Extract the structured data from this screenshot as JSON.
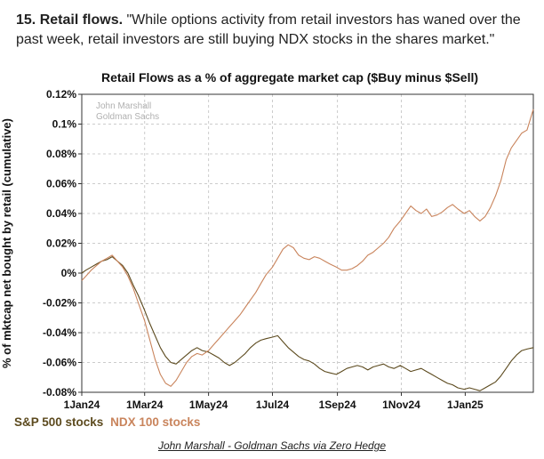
{
  "intro": {
    "lead": "15. Retail flows.",
    "text": " \"While options activity from retail investors has waned over the past week, retail investors are still buying NDX stocks in the shares market.\""
  },
  "caption": "John Marshall - Goldman Sachs via Zero Hedge",
  "colors": {
    "sp500": "#5c4a1e",
    "ndx": "#c9845c",
    "grid": "#cccccc"
  },
  "chart_data": {
    "type": "line",
    "title": "Retail Flows as a % of aggregate market cap ($Buy minus $Sell)",
    "ylabel": "% of mktcap net bought by retail (cumulative)",
    "xlabel": "",
    "watermark": [
      "John Marshall",
      "Goldman Sachs"
    ],
    "ylim": [
      -0.08,
      0.12
    ],
    "xlim": [
      "2024-01-01",
      "2025-03-07"
    ],
    "grid": true,
    "legend_position": "bottom-left",
    "x_ticks": [
      {
        "label": "1Jan24",
        "date": "2024-01-01"
      },
      {
        "label": "1Mar24",
        "date": "2024-03-01"
      },
      {
        "label": "1May24",
        "date": "2024-05-01"
      },
      {
        "label": "1Jul24",
        "date": "2024-07-01"
      },
      {
        "label": "1Sep24",
        "date": "2024-09-01"
      },
      {
        "label": "1Nov24",
        "date": "2024-11-01"
      },
      {
        "label": "1Jan25",
        "date": "2025-01-01"
      }
    ],
    "y_ticks": [
      "0.12%",
      "0.1%",
      "0.08%",
      "0.06%",
      "0.04%",
      "0.02%",
      "0%",
      "-0.02%",
      "-0.04%",
      "-0.06%",
      "-0.08%"
    ],
    "y_tick_values": [
      0.12,
      0.1,
      0.08,
      0.06,
      0.04,
      0.02,
      0,
      -0.02,
      -0.04,
      -0.06,
      -0.08
    ],
    "series": [
      {
        "name": "S&P 500 stocks",
        "points": [
          [
            "2024-01-01",
            0.0
          ],
          [
            "2024-01-05",
            0.002
          ],
          [
            "2024-01-10",
            0.004
          ],
          [
            "2024-01-15",
            0.006
          ],
          [
            "2024-01-20",
            0.008
          ],
          [
            "2024-01-25",
            0.009
          ],
          [
            "2024-01-30",
            0.011
          ],
          [
            "2024-02-04",
            0.008
          ],
          [
            "2024-02-09",
            0.005
          ],
          [
            "2024-02-14",
            0.0
          ],
          [
            "2024-02-19",
            -0.008
          ],
          [
            "2024-02-24",
            -0.015
          ],
          [
            "2024-03-01",
            -0.025
          ],
          [
            "2024-03-06",
            -0.034
          ],
          [
            "2024-03-11",
            -0.042
          ],
          [
            "2024-03-16",
            -0.05
          ],
          [
            "2024-03-21",
            -0.056
          ],
          [
            "2024-03-26",
            -0.06
          ],
          [
            "2024-03-31",
            -0.061
          ],
          [
            "2024-04-05",
            -0.058
          ],
          [
            "2024-04-10",
            -0.055
          ],
          [
            "2024-04-15",
            -0.052
          ],
          [
            "2024-04-20",
            -0.05
          ],
          [
            "2024-04-25",
            -0.052
          ],
          [
            "2024-05-01",
            -0.053
          ],
          [
            "2024-05-06",
            -0.055
          ],
          [
            "2024-05-11",
            -0.057
          ],
          [
            "2024-05-16",
            -0.06
          ],
          [
            "2024-05-21",
            -0.062
          ],
          [
            "2024-05-26",
            -0.06
          ],
          [
            "2024-05-31",
            -0.057
          ],
          [
            "2024-06-05",
            -0.054
          ],
          [
            "2024-06-10",
            -0.05
          ],
          [
            "2024-06-15",
            -0.047
          ],
          [
            "2024-06-20",
            -0.045
          ],
          [
            "2024-06-25",
            -0.044
          ],
          [
            "2024-07-01",
            -0.043
          ],
          [
            "2024-07-06",
            -0.042
          ],
          [
            "2024-07-11",
            -0.046
          ],
          [
            "2024-07-16",
            -0.05
          ],
          [
            "2024-07-21",
            -0.053
          ],
          [
            "2024-07-26",
            -0.056
          ],
          [
            "2024-07-31",
            -0.058
          ],
          [
            "2024-08-05",
            -0.059
          ],
          [
            "2024-08-10",
            -0.061
          ],
          [
            "2024-08-15",
            -0.064
          ],
          [
            "2024-08-20",
            -0.066
          ],
          [
            "2024-08-25",
            -0.067
          ],
          [
            "2024-08-31",
            -0.068
          ],
          [
            "2024-09-05",
            -0.066
          ],
          [
            "2024-09-10",
            -0.064
          ],
          [
            "2024-09-15",
            -0.063
          ],
          [
            "2024-09-20",
            -0.062
          ],
          [
            "2024-09-25",
            -0.063
          ],
          [
            "2024-09-30",
            -0.065
          ],
          [
            "2024-10-05",
            -0.063
          ],
          [
            "2024-10-10",
            -0.062
          ],
          [
            "2024-10-15",
            -0.061
          ],
          [
            "2024-10-20",
            -0.063
          ],
          [
            "2024-10-25",
            -0.064
          ],
          [
            "2024-10-31",
            -0.062
          ],
          [
            "2024-11-05",
            -0.064
          ],
          [
            "2024-11-10",
            -0.066
          ],
          [
            "2024-11-15",
            -0.065
          ],
          [
            "2024-11-20",
            -0.064
          ],
          [
            "2024-11-25",
            -0.066
          ],
          [
            "2024-11-30",
            -0.068
          ],
          [
            "2024-12-05",
            -0.07
          ],
          [
            "2024-12-10",
            -0.072
          ],
          [
            "2024-12-15",
            -0.074
          ],
          [
            "2024-12-20",
            -0.075
          ],
          [
            "2024-12-25",
            -0.077
          ],
          [
            "2024-12-31",
            -0.078
          ],
          [
            "2025-01-05",
            -0.077
          ],
          [
            "2025-01-10",
            -0.078
          ],
          [
            "2025-01-15",
            -0.079
          ],
          [
            "2025-01-20",
            -0.077
          ],
          [
            "2025-01-25",
            -0.075
          ],
          [
            "2025-01-30",
            -0.073
          ],
          [
            "2025-02-04",
            -0.069
          ],
          [
            "2025-02-09",
            -0.064
          ],
          [
            "2025-02-14",
            -0.059
          ],
          [
            "2025-02-19",
            -0.055
          ],
          [
            "2025-02-24",
            -0.052
          ],
          [
            "2025-03-01",
            -0.051
          ],
          [
            "2025-03-07",
            -0.05
          ]
        ]
      },
      {
        "name": "NDX 100 stocks",
        "points": [
          [
            "2024-01-01",
            -0.005
          ],
          [
            "2024-01-05",
            -0.002
          ],
          [
            "2024-01-10",
            0.002
          ],
          [
            "2024-01-15",
            0.005
          ],
          [
            "2024-01-20",
            0.008
          ],
          [
            "2024-01-25",
            0.01
          ],
          [
            "2024-01-30",
            0.012
          ],
          [
            "2024-02-04",
            0.008
          ],
          [
            "2024-02-09",
            0.004
          ],
          [
            "2024-02-14",
            -0.002
          ],
          [
            "2024-02-19",
            -0.01
          ],
          [
            "2024-02-24",
            -0.02
          ],
          [
            "2024-03-01",
            -0.032
          ],
          [
            "2024-03-06",
            -0.045
          ],
          [
            "2024-03-11",
            -0.058
          ],
          [
            "2024-03-16",
            -0.068
          ],
          [
            "2024-03-21",
            -0.074
          ],
          [
            "2024-03-26",
            -0.076
          ],
          [
            "2024-03-31",
            -0.072
          ],
          [
            "2024-04-05",
            -0.066
          ],
          [
            "2024-04-10",
            -0.06
          ],
          [
            "2024-04-15",
            -0.056
          ],
          [
            "2024-04-20",
            -0.054
          ],
          [
            "2024-04-25",
            -0.055
          ],
          [
            "2024-05-01",
            -0.052
          ],
          [
            "2024-05-06",
            -0.048
          ],
          [
            "2024-05-11",
            -0.044
          ],
          [
            "2024-05-16",
            -0.04
          ],
          [
            "2024-05-21",
            -0.036
          ],
          [
            "2024-05-26",
            -0.032
          ],
          [
            "2024-05-31",
            -0.028
          ],
          [
            "2024-06-05",
            -0.023
          ],
          [
            "2024-06-10",
            -0.018
          ],
          [
            "2024-06-15",
            -0.013
          ],
          [
            "2024-06-20",
            -0.007
          ],
          [
            "2024-06-25",
            -0.001
          ],
          [
            "2024-07-01",
            0.004
          ],
          [
            "2024-07-06",
            0.01
          ],
          [
            "2024-07-11",
            0.016
          ],
          [
            "2024-07-16",
            0.019
          ],
          [
            "2024-07-21",
            0.017
          ],
          [
            "2024-07-26",
            0.012
          ],
          [
            "2024-07-31",
            0.01
          ],
          [
            "2024-08-05",
            0.009
          ],
          [
            "2024-08-10",
            0.011
          ],
          [
            "2024-08-15",
            0.01
          ],
          [
            "2024-08-20",
            0.008
          ],
          [
            "2024-08-25",
            0.006
          ],
          [
            "2024-08-31",
            0.004
          ],
          [
            "2024-09-05",
            0.002
          ],
          [
            "2024-09-10",
            0.002
          ],
          [
            "2024-09-15",
            0.003
          ],
          [
            "2024-09-20",
            0.005
          ],
          [
            "2024-09-25",
            0.008
          ],
          [
            "2024-09-30",
            0.012
          ],
          [
            "2024-10-05",
            0.014
          ],
          [
            "2024-10-10",
            0.017
          ],
          [
            "2024-10-15",
            0.02
          ],
          [
            "2024-10-20",
            0.024
          ],
          [
            "2024-10-25",
            0.03
          ],
          [
            "2024-10-31",
            0.035
          ],
          [
            "2024-11-05",
            0.04
          ],
          [
            "2024-11-10",
            0.045
          ],
          [
            "2024-11-15",
            0.042
          ],
          [
            "2024-11-20",
            0.04
          ],
          [
            "2024-11-25",
            0.043
          ],
          [
            "2024-11-30",
            0.038
          ],
          [
            "2024-12-05",
            0.039
          ],
          [
            "2024-12-10",
            0.041
          ],
          [
            "2024-12-15",
            0.044
          ],
          [
            "2024-12-20",
            0.046
          ],
          [
            "2024-12-25",
            0.043
          ],
          [
            "2024-12-31",
            0.04
          ],
          [
            "2025-01-05",
            0.042
          ],
          [
            "2025-01-10",
            0.038
          ],
          [
            "2025-01-15",
            0.035
          ],
          [
            "2025-01-20",
            0.038
          ],
          [
            "2025-01-25",
            0.044
          ],
          [
            "2025-01-30",
            0.052
          ],
          [
            "2025-02-04",
            0.062
          ],
          [
            "2025-02-09",
            0.076
          ],
          [
            "2025-02-14",
            0.084
          ],
          [
            "2025-02-19",
            0.089
          ],
          [
            "2025-02-24",
            0.094
          ],
          [
            "2025-03-01",
            0.096
          ],
          [
            "2025-03-07",
            0.11
          ]
        ]
      }
    ]
  }
}
